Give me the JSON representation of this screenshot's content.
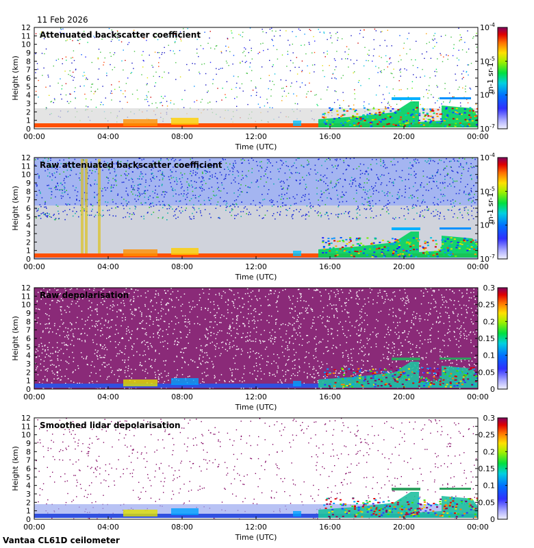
{
  "date_label": "11 Feb 2026",
  "footer_label": "Vantaa CL61D ceilometer",
  "chart_data": [
    {
      "type": "heatmap",
      "title": "Attenuated backscatter coefficient",
      "xlabel": "Time (UTC)",
      "ylabel": "Height (km)",
      "x_ticks": [
        "00:00",
        "04:00",
        "08:00",
        "12:00",
        "16:00",
        "20:00",
        "00:00"
      ],
      "y_ticks": [
        "0",
        "1",
        "2",
        "3",
        "4",
        "5",
        "6",
        "7",
        "8",
        "9",
        "10",
        "11",
        "12"
      ],
      "ylim": [
        0,
        12
      ],
      "colorbar": {
        "scale": "log",
        "range": [
          1e-07,
          0.0001
        ],
        "tick_labels": [
          "10-7",
          "10-6",
          "10-5",
          "10-4"
        ],
        "unit": "m-1 sr-1"
      }
    },
    {
      "type": "heatmap",
      "title": "Raw attenuated backscatter coefficient",
      "xlabel": "Time (UTC)",
      "ylabel": "Height (km)",
      "x_ticks": [
        "00:00",
        "04:00",
        "08:00",
        "12:00",
        "16:00",
        "20:00",
        "00:00"
      ],
      "y_ticks": [
        "0",
        "1",
        "2",
        "3",
        "4",
        "5",
        "6",
        "7",
        "8",
        "9",
        "10",
        "11",
        "12"
      ],
      "ylim": [
        0,
        12
      ],
      "colorbar": {
        "scale": "log",
        "range": [
          1e-07,
          0.0001
        ],
        "tick_labels": [
          "10-7",
          "10-6",
          "10-5",
          "10-4"
        ],
        "unit": "m-1 sr-1"
      }
    },
    {
      "type": "heatmap",
      "title": "Raw depolarisation",
      "xlabel": "Time (UTC)",
      "ylabel": "Height (km)",
      "x_ticks": [
        "00:00",
        "04:00",
        "08:00",
        "12:00",
        "16:00",
        "20:00",
        "00:00"
      ],
      "y_ticks": [
        "0",
        "1",
        "2",
        "3",
        "4",
        "5",
        "6",
        "7",
        "8",
        "9",
        "10",
        "11",
        "12"
      ],
      "ylim": [
        0,
        12
      ],
      "colorbar": {
        "scale": "linear",
        "range": [
          0,
          0.3
        ],
        "tick_labels": [
          "0",
          "0.05",
          "0.1",
          "0.15",
          "0.2",
          "0.25",
          "0.3"
        ],
        "unit": ""
      }
    },
    {
      "type": "heatmap",
      "title": "Smoothed lidar depolarisation",
      "xlabel": "Time (UTC)",
      "ylabel": "Height (km)",
      "x_ticks": [
        "00:00",
        "04:00",
        "08:00",
        "12:00",
        "16:00",
        "20:00",
        "00:00"
      ],
      "y_ticks": [
        "0",
        "1",
        "2",
        "3",
        "4",
        "5",
        "6",
        "7",
        "8",
        "9",
        "10",
        "11",
        "12"
      ],
      "ylim": [
        0,
        12
      ],
      "colorbar": {
        "scale": "linear",
        "range": [
          0,
          0.3
        ],
        "tick_labels": [
          "0",
          "0.05",
          "0.1",
          "0.15",
          "0.2",
          "0.25",
          "0.3"
        ],
        "unit": ""
      }
    }
  ]
}
